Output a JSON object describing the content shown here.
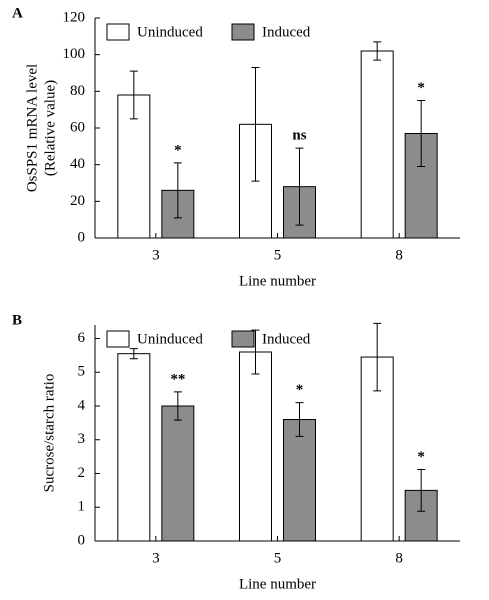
{
  "chart_data": [
    {
      "type": "bar",
      "panel": "A",
      "y_label": [
        "OsSPS1 mRNA level",
        "(Relative value)"
      ],
      "x_label": "Line number",
      "categories": [
        "3",
        "5",
        "8"
      ],
      "series": [
        {
          "name": "Uninduced",
          "color": "#ffffff",
          "values": [
            78,
            62,
            102
          ],
          "errors": [
            13,
            31,
            5
          ]
        },
        {
          "name": "Induced",
          "color": "#8c8c8c",
          "values": [
            26,
            28,
            57
          ],
          "errors": [
            15,
            21,
            18
          ]
        }
      ],
      "annotations": [
        "*",
        "ns",
        "*"
      ],
      "ylim": [
        0,
        120
      ],
      "yticks": [
        0,
        20,
        40,
        60,
        80,
        100,
        120
      ]
    },
    {
      "type": "bar",
      "panel": "B",
      "y_label": [
        "Sucrose/starch ratio"
      ],
      "x_label": "Line number",
      "categories": [
        "3",
        "5",
        "8"
      ],
      "series": [
        {
          "name": "Uninduced",
          "color": "#ffffff",
          "values": [
            5.55,
            5.6,
            5.45
          ],
          "errors": [
            0.15,
            0.65,
            1.0
          ]
        },
        {
          "name": "Induced",
          "color": "#8c8c8c",
          "values": [
            4.0,
            3.6,
            1.5
          ],
          "errors": [
            0.42,
            0.5,
            0.62
          ]
        }
      ],
      "annotations": [
        "**",
        "*",
        "*"
      ],
      "ylim": [
        0,
        6.4
      ],
      "yticks": [
        0,
        1,
        2,
        3,
        4,
        5,
        6
      ]
    }
  ]
}
